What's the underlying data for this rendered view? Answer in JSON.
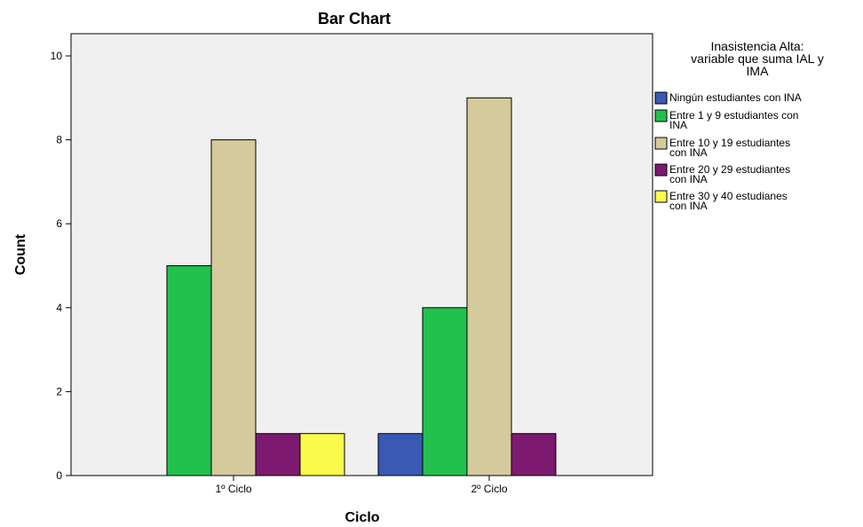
{
  "chart_data": {
    "type": "bar",
    "title": "Bar Chart",
    "xlabel": "Ciclo",
    "ylabel": "Count",
    "ylim": [
      0,
      10.5
    ],
    "yticks": [
      0,
      2,
      4,
      6,
      8,
      10
    ],
    "categories": [
      "1º Ciclo",
      "2º Ciclo"
    ],
    "grid": false,
    "legend_position": "right",
    "legend_title": [
      "Inasistencia Alta:",
      "variable que suma IAL y",
      "IMA"
    ],
    "series": [
      {
        "name": "Ningún estudiantes con INA",
        "label_lines": [
          "Ningún estudiantes con INA"
        ],
        "color": "#3a59b5",
        "values": [
          null,
          1
        ]
      },
      {
        "name": "Entre 1 y 9 estudiantes con INA",
        "label_lines": [
          "Entre 1 y 9 estudiantes con",
          "INA"
        ],
        "color": "#22c04d",
        "values": [
          5,
          4
        ]
      },
      {
        "name": "Entre 10 y 19 estudiantes con INA",
        "label_lines": [
          "Entre 10 y 19 estudiantes",
          "con INA"
        ],
        "color": "#d4ca9c",
        "values": [
          8,
          9
        ]
      },
      {
        "name": "Entre 20 y 29 estudiantes con INA",
        "label_lines": [
          "Entre 20 y 29 estudiantes",
          "con INA"
        ],
        "color": "#7d1a70",
        "values": [
          1,
          1
        ]
      },
      {
        "name": "Entre 30 y 40 estudianes con INA",
        "label_lines": [
          "Entre 30 y 40 estudianes",
          "con INA"
        ],
        "color": "#fbfb4b",
        "values": [
          1,
          null
        ]
      }
    ],
    "plot_background": "#f0f0f0"
  }
}
